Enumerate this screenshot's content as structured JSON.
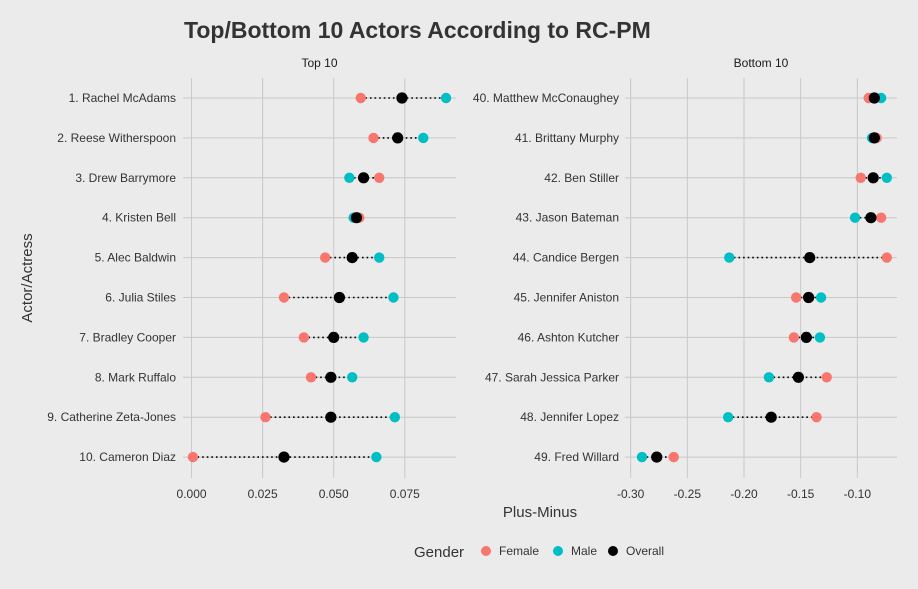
{
  "chart_data": {
    "type": "scatter",
    "title": "Top/Bottom 10 Actors According to RC-PM",
    "xlabel": "Plus-Minus",
    "ylabel": "Actor/Actress",
    "legend": {
      "title": "Gender",
      "position": "bottom",
      "entries": [
        {
          "name": "Female",
          "color": "#f8766d"
        },
        {
          "name": "Male",
          "color": "#00bfc4"
        },
        {
          "name": "Overall",
          "color": "#000000"
        }
      ]
    },
    "grid": true,
    "panels": [
      {
        "strip": "Top 10",
        "xlim": [
          -0.003,
          0.093
        ],
        "ticks": [
          0.0,
          0.025,
          0.05,
          0.075
        ],
        "tick_labels": [
          "0.000",
          "0.025",
          "0.050",
          "0.075"
        ],
        "categories": [
          "1. Rachel McAdams",
          "2. Reese Witherspoon",
          "3. Drew Barrymore",
          "4. Kristen Bell",
          "5. Alec Baldwin",
          "6. Julia Stiles",
          "7. Bradley Cooper",
          "8. Mark Ruffalo",
          "9. Catherine Zeta-Jones",
          "10. Cameron Diaz"
        ],
        "female": [
          0.0595,
          0.064,
          0.066,
          0.059,
          0.047,
          0.0325,
          0.0395,
          0.042,
          0.026,
          0.0005
        ],
        "male": [
          0.0895,
          0.0815,
          0.0555,
          0.057,
          0.066,
          0.071,
          0.0605,
          0.0565,
          0.0715,
          0.065
        ],
        "overall": [
          0.074,
          0.0725,
          0.0605,
          0.058,
          0.0565,
          0.052,
          0.05,
          0.049,
          0.049,
          0.0325
        ]
      },
      {
        "strip": "Bottom 10",
        "xlim": [
          -0.305,
          -0.065
        ],
        "ticks": [
          -0.3,
          -0.25,
          -0.2,
          -0.15,
          -0.1
        ],
        "tick_labels": [
          "-0.30",
          "-0.25",
          "-0.20",
          "-0.15",
          "-0.10"
        ],
        "categories": [
          "40. Matthew McConaughey",
          "41. Brittany Murphy",
          "42. Ben Stiller",
          "43. Jason Bateman",
          "44. Candice Bergen",
          "45. Jennifer Aniston",
          "46. Ashton Kutcher",
          "47. Sarah Jessica Parker",
          "48. Jennifer Lopez",
          "49. Fred Willard"
        ],
        "female": [
          -0.09,
          -0.083,
          -0.097,
          -0.079,
          -0.074,
          -0.154,
          -0.156,
          -0.127,
          -0.136,
          -0.262
        ],
        "male": [
          -0.079,
          -0.087,
          -0.074,
          -0.102,
          -0.213,
          -0.132,
          -0.133,
          -0.178,
          -0.214,
          -0.29
        ],
        "overall": [
          -0.085,
          -0.085,
          -0.086,
          -0.088,
          -0.142,
          -0.143,
          -0.145,
          -0.152,
          -0.176,
          -0.277
        ]
      }
    ]
  }
}
